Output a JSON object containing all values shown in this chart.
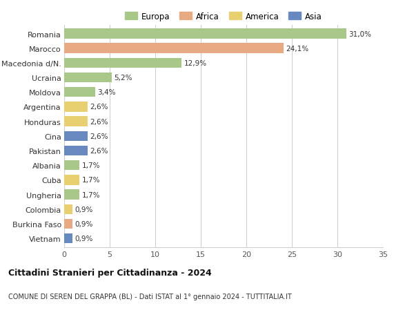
{
  "countries": [
    "Romania",
    "Marocco",
    "Macedonia d/N.",
    "Ucraina",
    "Moldova",
    "Argentina",
    "Honduras",
    "Cina",
    "Pakistan",
    "Albania",
    "Cuba",
    "Ungheria",
    "Colombia",
    "Burkina Faso",
    "Vietnam"
  ],
  "values": [
    31.0,
    24.1,
    12.9,
    5.2,
    3.4,
    2.6,
    2.6,
    2.6,
    2.6,
    1.7,
    1.7,
    1.7,
    0.9,
    0.9,
    0.9
  ],
  "labels": [
    "31,0%",
    "24,1%",
    "12,9%",
    "5,2%",
    "3,4%",
    "2,6%",
    "2,6%",
    "2,6%",
    "2,6%",
    "1,7%",
    "1,7%",
    "1,7%",
    "0,9%",
    "0,9%",
    "0,9%"
  ],
  "continent": [
    "Europa",
    "Africa",
    "Europa",
    "Europa",
    "Europa",
    "America",
    "America",
    "Asia",
    "Asia",
    "Europa",
    "America",
    "Europa",
    "America",
    "Africa",
    "Asia"
  ],
  "colors": {
    "Europa": "#a8c88a",
    "Africa": "#e8aa82",
    "America": "#e8d070",
    "Asia": "#6888c0"
  },
  "legend_order": [
    "Europa",
    "Africa",
    "America",
    "Asia"
  ],
  "title": "Cittadini Stranieri per Cittadinanza - 2024",
  "subtitle": "COMUNE DI SEREN DEL GRAPPA (BL) - Dati ISTAT al 1° gennaio 2024 - TUTTITALIA.IT",
  "xlim": [
    0,
    35
  ],
  "xticks": [
    0,
    5,
    10,
    15,
    20,
    25,
    30,
    35
  ],
  "bg_color": "#ffffff",
  "grid_color": "#cccccc"
}
